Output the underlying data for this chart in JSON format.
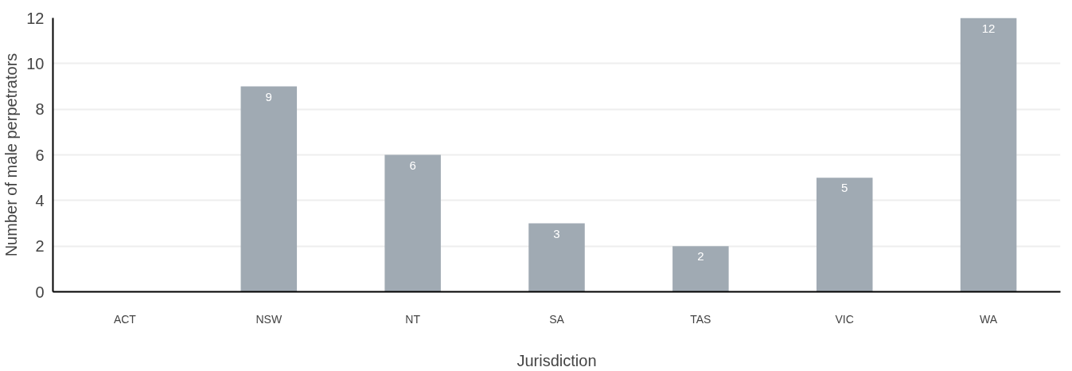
{
  "chart_data": {
    "type": "bar",
    "xlabel": "Jurisdiction",
    "ylabel": "Number of male perpetrators",
    "categories": [
      "ACT",
      "NSW",
      "NT",
      "SA",
      "TAS",
      "VIC",
      "WA"
    ],
    "values": [
      0,
      9,
      6,
      3,
      2,
      5,
      12
    ],
    "value_labels": [
      null,
      "9",
      "6",
      "3",
      "2",
      "5",
      "12"
    ],
    "color": "#a0aab3",
    "ylim": [
      0,
      12
    ],
    "yticks": [
      0,
      2,
      4,
      6,
      8,
      10,
      12
    ],
    "grid": "y"
  }
}
